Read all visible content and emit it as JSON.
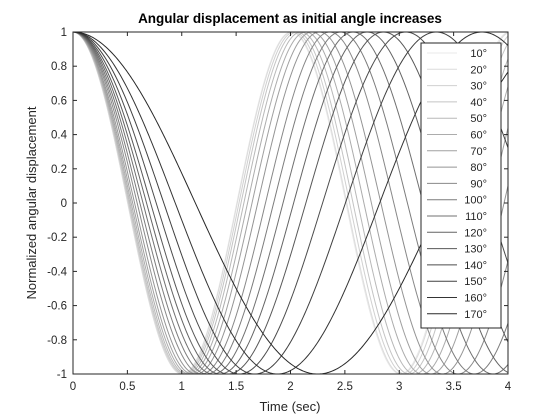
{
  "chart_data": {
    "type": "line",
    "title": "Angular displacement as initial angle increases",
    "xlabel": "Time (sec)",
    "ylabel": "Normalized angular displacement",
    "xlim": [
      0,
      4
    ],
    "ylim": [
      -1,
      1
    ],
    "xticks": [
      0,
      0.5,
      1,
      1.5,
      2,
      2.5,
      3,
      3.5,
      4
    ],
    "xtick_labels": [
      "0",
      "0.5",
      "1",
      "1.5",
      "2",
      "2.5",
      "3",
      "3.5",
      "4"
    ],
    "yticks": [
      -1,
      -0.8,
      -0.6,
      -0.4,
      -0.2,
      0,
      0.2,
      0.4,
      0.6,
      0.8,
      1
    ],
    "ytick_labels": [
      "-1",
      "-0.8",
      "-0.6",
      "-0.4",
      "-0.2",
      "0",
      "0.2",
      "0.4",
      "0.6",
      "0.8",
      "1"
    ],
    "grid": false,
    "legend_position": "top-right",
    "series": [
      {
        "name": "10°",
        "initial_angle_deg": 10,
        "period_sec": 2.008,
        "color": "#e8e8e8"
      },
      {
        "name": "20°",
        "initial_angle_deg": 20,
        "period_sec": 2.014,
        "color": "#dcdcdc"
      },
      {
        "name": "30°",
        "initial_angle_deg": 30,
        "period_sec": 2.035,
        "color": "#d0d0d0"
      },
      {
        "name": "40°",
        "initial_angle_deg": 40,
        "period_sec": 2.06,
        "color": "#c4c4c4"
      },
      {
        "name": "50°",
        "initial_angle_deg": 50,
        "period_sec": 2.095,
        "color": "#b8b8b8"
      },
      {
        "name": "60°",
        "initial_angle_deg": 60,
        "period_sec": 2.14,
        "color": "#acacac"
      },
      {
        "name": "70°",
        "initial_angle_deg": 70,
        "period_sec": 2.195,
        "color": "#a0a0a0"
      },
      {
        "name": "80°",
        "initial_angle_deg": 80,
        "period_sec": 2.265,
        "color": "#949494"
      },
      {
        "name": "90°",
        "initial_angle_deg": 90,
        "period_sec": 2.36,
        "color": "#888888"
      },
      {
        "name": "100°",
        "initial_angle_deg": 100,
        "period_sec": 2.46,
        "color": "#7c7c7c"
      },
      {
        "name": "110°",
        "initial_angle_deg": 110,
        "period_sec": 2.575,
        "color": "#707070"
      },
      {
        "name": "120°",
        "initial_angle_deg": 120,
        "period_sec": 2.705,
        "color": "#646464"
      },
      {
        "name": "130°",
        "initial_angle_deg": 130,
        "period_sec": 2.855,
        "color": "#585858"
      },
      {
        "name": "140°",
        "initial_angle_deg": 140,
        "period_sec": 3.06,
        "color": "#4c4c4c"
      },
      {
        "name": "150°",
        "initial_angle_deg": 150,
        "period_sec": 3.34,
        "color": "#404040"
      },
      {
        "name": "160°",
        "initial_angle_deg": 160,
        "period_sec": 3.76,
        "color": "#343434"
      },
      {
        "name": "170°",
        "initial_angle_deg": 170,
        "period_sec": 4.5,
        "color": "#282828"
      }
    ]
  }
}
